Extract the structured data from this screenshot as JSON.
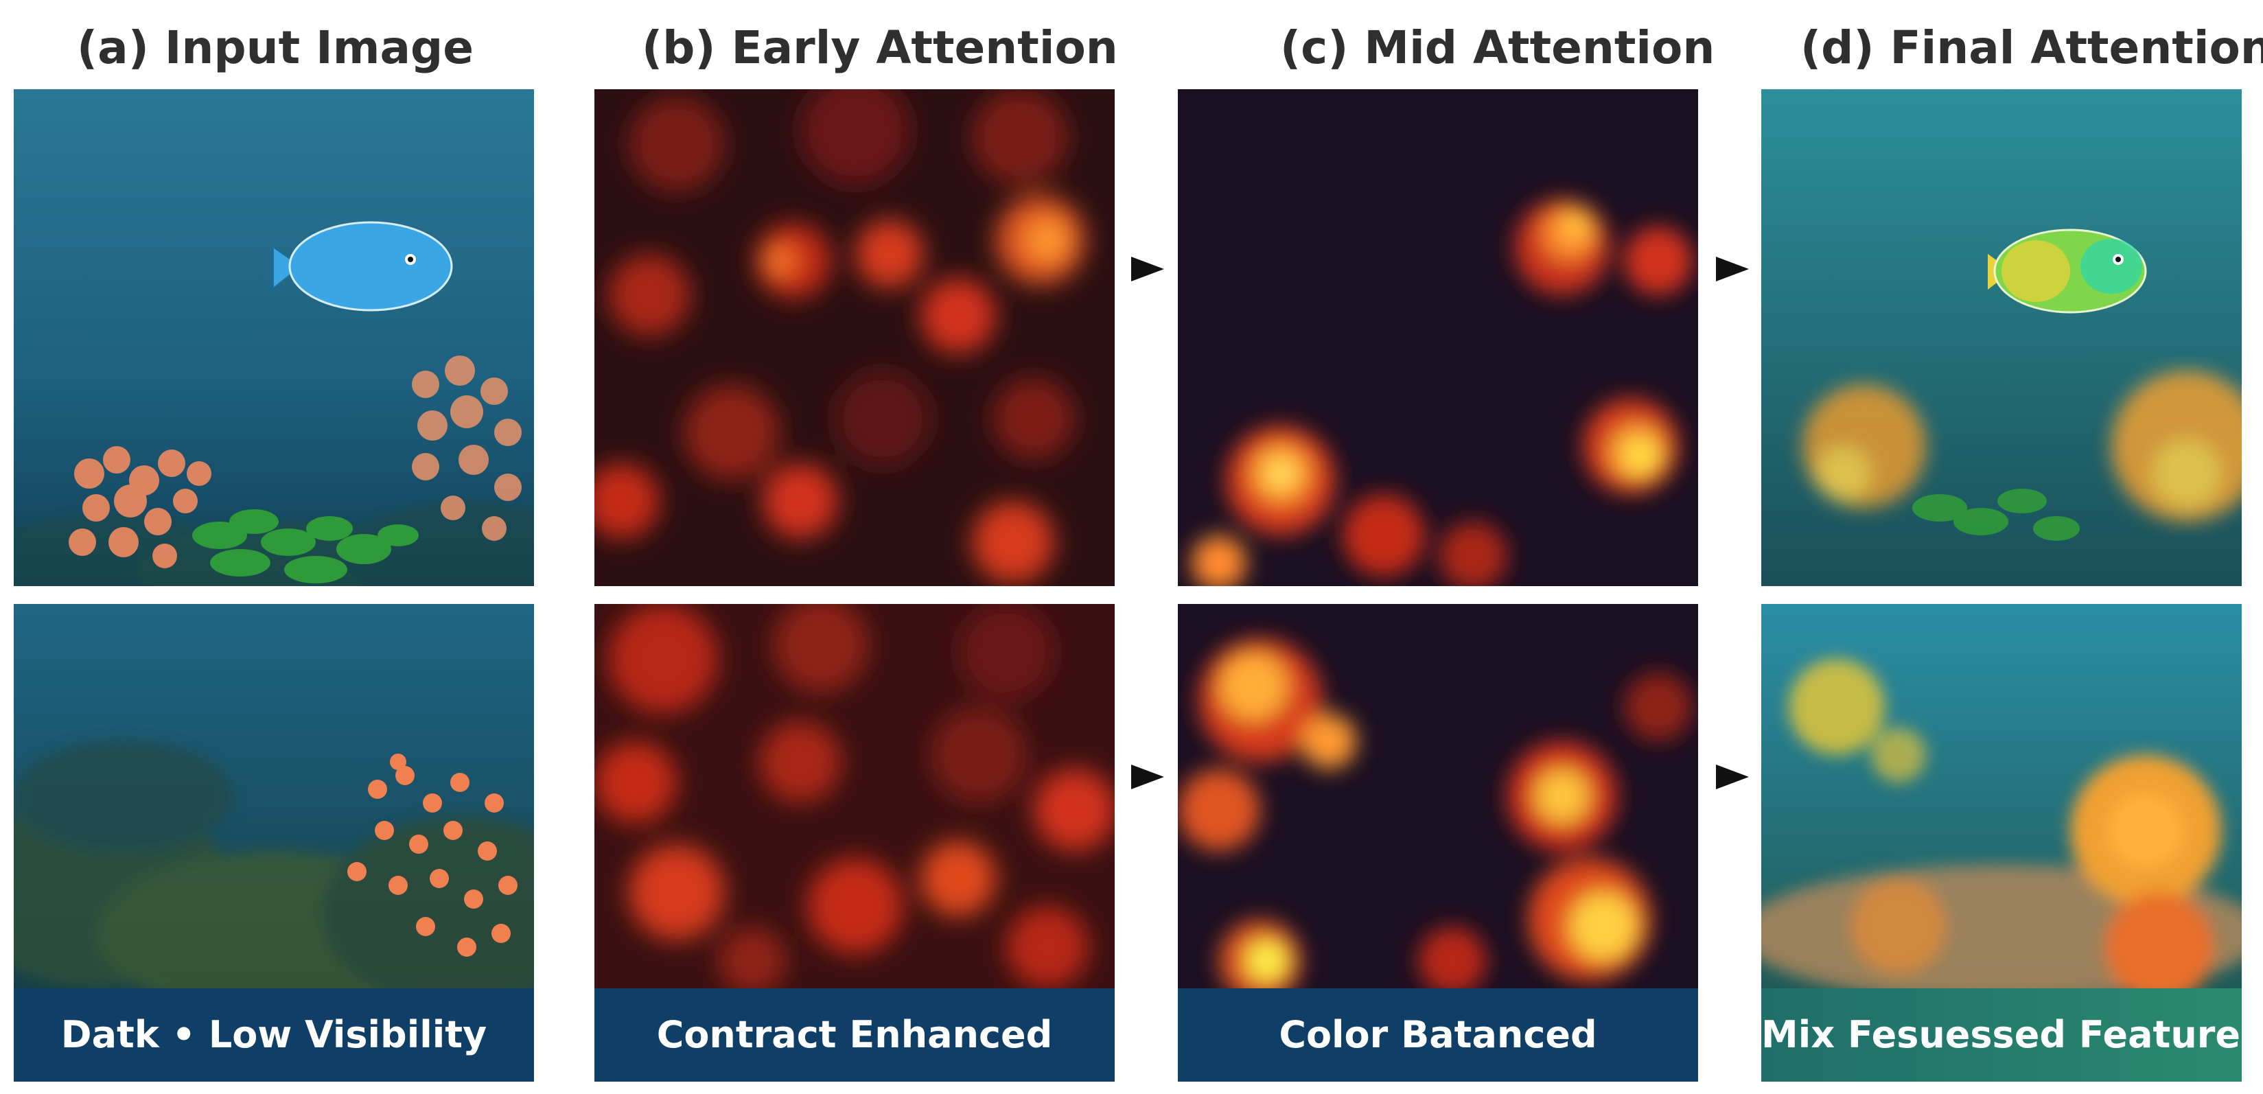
{
  "columns": [
    {
      "title": "(a)  Input Image",
      "caption": "Datk • Low Visibility"
    },
    {
      "title": "(b)  Early Attention",
      "caption": "Contract Enhanced"
    },
    {
      "title": "(c)  Mid Attention",
      "caption": "Color Batanced"
    },
    {
      "title": "(d)  Final Attention",
      "caption": "Mix Fesuessed Features"
    }
  ],
  "colors": {
    "water": "#1d5f7e",
    "heatmap_low": "#1b0f22",
    "heatmap_mid": "#d2311c",
    "heatmap_high": "#fff04a",
    "caption_bar": "#0f3e66",
    "fish_input": "#3aa6e4",
    "coral": "#f08a60",
    "seaweed": "#2f9a3a"
  },
  "icons": {
    "arrow": "right-triangle-arrow-icon"
  }
}
